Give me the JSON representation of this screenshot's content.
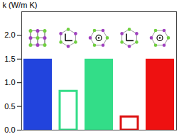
{
  "chart_data": {
    "type": "bar",
    "categories": [
      null,
      null,
      null,
      null,
      null
    ],
    "values": [
      1.5,
      0.82,
      1.5,
      0.28,
      1.5
    ],
    "colors": [
      "#2244dd",
      "#33dd88",
      "#33dd88",
      "#dd1111",
      "#ee1111"
    ],
    "ylabel": "k (W/m K)",
    "ylim": [
      0,
      2.5
    ],
    "yticks": [
      {
        "value": 0,
        "label": "0.0"
      },
      {
        "value": 0.5,
        "label": "0.5"
      },
      {
        "value": 1,
        "label": "1.0"
      },
      {
        "value": 1.5,
        "label": "1.5"
      },
      {
        "value": 2,
        "label": "2.0"
      }
    ],
    "tick_labels": "y",
    "grid": false
  }
}
